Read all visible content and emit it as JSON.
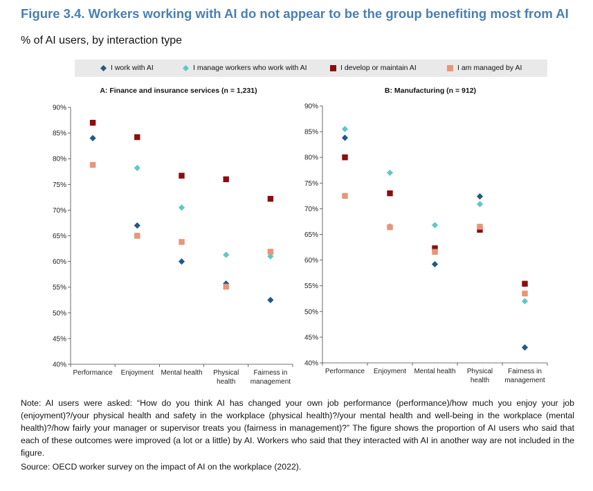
{
  "figure": {
    "title": "Figure 3.4. Workers working with AI do not appear to be the group benefiting most from AI",
    "subtitle": "% of AI users, by interaction type"
  },
  "legend": {
    "items": [
      {
        "label": "I work with AI",
        "color": "#1f5a8a",
        "shape": "diamond"
      },
      {
        "label": "I manage workers who work with AI",
        "color": "#5fc8c4",
        "shape": "diamond"
      },
      {
        "label": "I develop or maintain AI",
        "color": "#8b0d0d",
        "shape": "square"
      },
      {
        "label": "I am managed by AI",
        "color": "#e8957a",
        "shape": "square"
      }
    ]
  },
  "chart_data": [
    {
      "type": "scatter",
      "title": "A: Finance and insurance services (n = 1,231)",
      "categories": [
        "Performance",
        "Enjoyment",
        "Mental health",
        "Physical health",
        "Fairness in management"
      ],
      "category_labels": [
        [
          "Performance"
        ],
        [
          "Enjoyment"
        ],
        [
          "Mental health"
        ],
        [
          "Physical",
          "health"
        ],
        [
          "Fairness in",
          "management"
        ]
      ],
      "ylim": [
        40,
        90
      ],
      "yticks": [
        "40%",
        "45%",
        "50%",
        "55%",
        "60%",
        "65%",
        "70%",
        "75%",
        "80%",
        "85%",
        "90%"
      ],
      "series": [
        {
          "name": "I work with AI",
          "values": [
            84.0,
            67.0,
            60.0,
            55.7,
            52.5
          ]
        },
        {
          "name": "I manage workers who work with AI",
          "values": [
            87.0,
            78.2,
            70.5,
            61.3,
            61.0
          ]
        },
        {
          "name": "I develop or maintain AI",
          "values": [
            87.0,
            84.2,
            76.7,
            76.0,
            72.2
          ]
        },
        {
          "name": "I am managed by AI",
          "values": [
            78.8,
            65.0,
            63.8,
            55.1,
            61.9
          ]
        }
      ]
    },
    {
      "type": "scatter",
      "title": "B: Manufacturing (n = 912)",
      "categories": [
        "Performance",
        "Enjoyment",
        "Mental health",
        "Physical health",
        "Fairness in management"
      ],
      "category_labels": [
        [
          "Performance"
        ],
        [
          "Enjoyment"
        ],
        [
          "Mental health"
        ],
        [
          "Physical",
          "health"
        ],
        [
          "Fairness in",
          "management"
        ]
      ],
      "ylim": [
        40,
        90
      ],
      "yticks": [
        "40%",
        "45%",
        "50%",
        "55%",
        "60%",
        "65%",
        "70%",
        "75%",
        "80%",
        "85%",
        "90%"
      ],
      "series": [
        {
          "name": "I work with AI",
          "values": [
            83.8,
            66.5,
            59.2,
            72.4,
            43.0
          ]
        },
        {
          "name": "I manage workers who work with AI",
          "values": [
            85.5,
            77.0,
            66.8,
            70.9,
            52.0
          ]
        },
        {
          "name": "I develop or maintain AI",
          "values": [
            80.0,
            73.0,
            62.3,
            65.9,
            55.4
          ]
        },
        {
          "name": "I am managed by AI",
          "values": [
            72.5,
            66.4,
            61.6,
            66.5,
            53.5
          ]
        }
      ]
    }
  ],
  "note": "Note: AI users were asked: “How do you think AI has changed your own job performance (performance)/how much you enjoy your job (enjoyment)?/your physical health and safety in the workplace (physical health)?/your mental health and well-being in the workplace (mental health)?/how fairly your manager or supervisor treats you (fairness in management)?” The figure shows the proportion of AI users who said that each of these outcomes were improved (a lot or a little) by AI. Workers who said that they interacted with AI in another way are not included in the figure.",
  "source": "Source: OECD worker survey on the impact of AI on the workplace (2022)."
}
